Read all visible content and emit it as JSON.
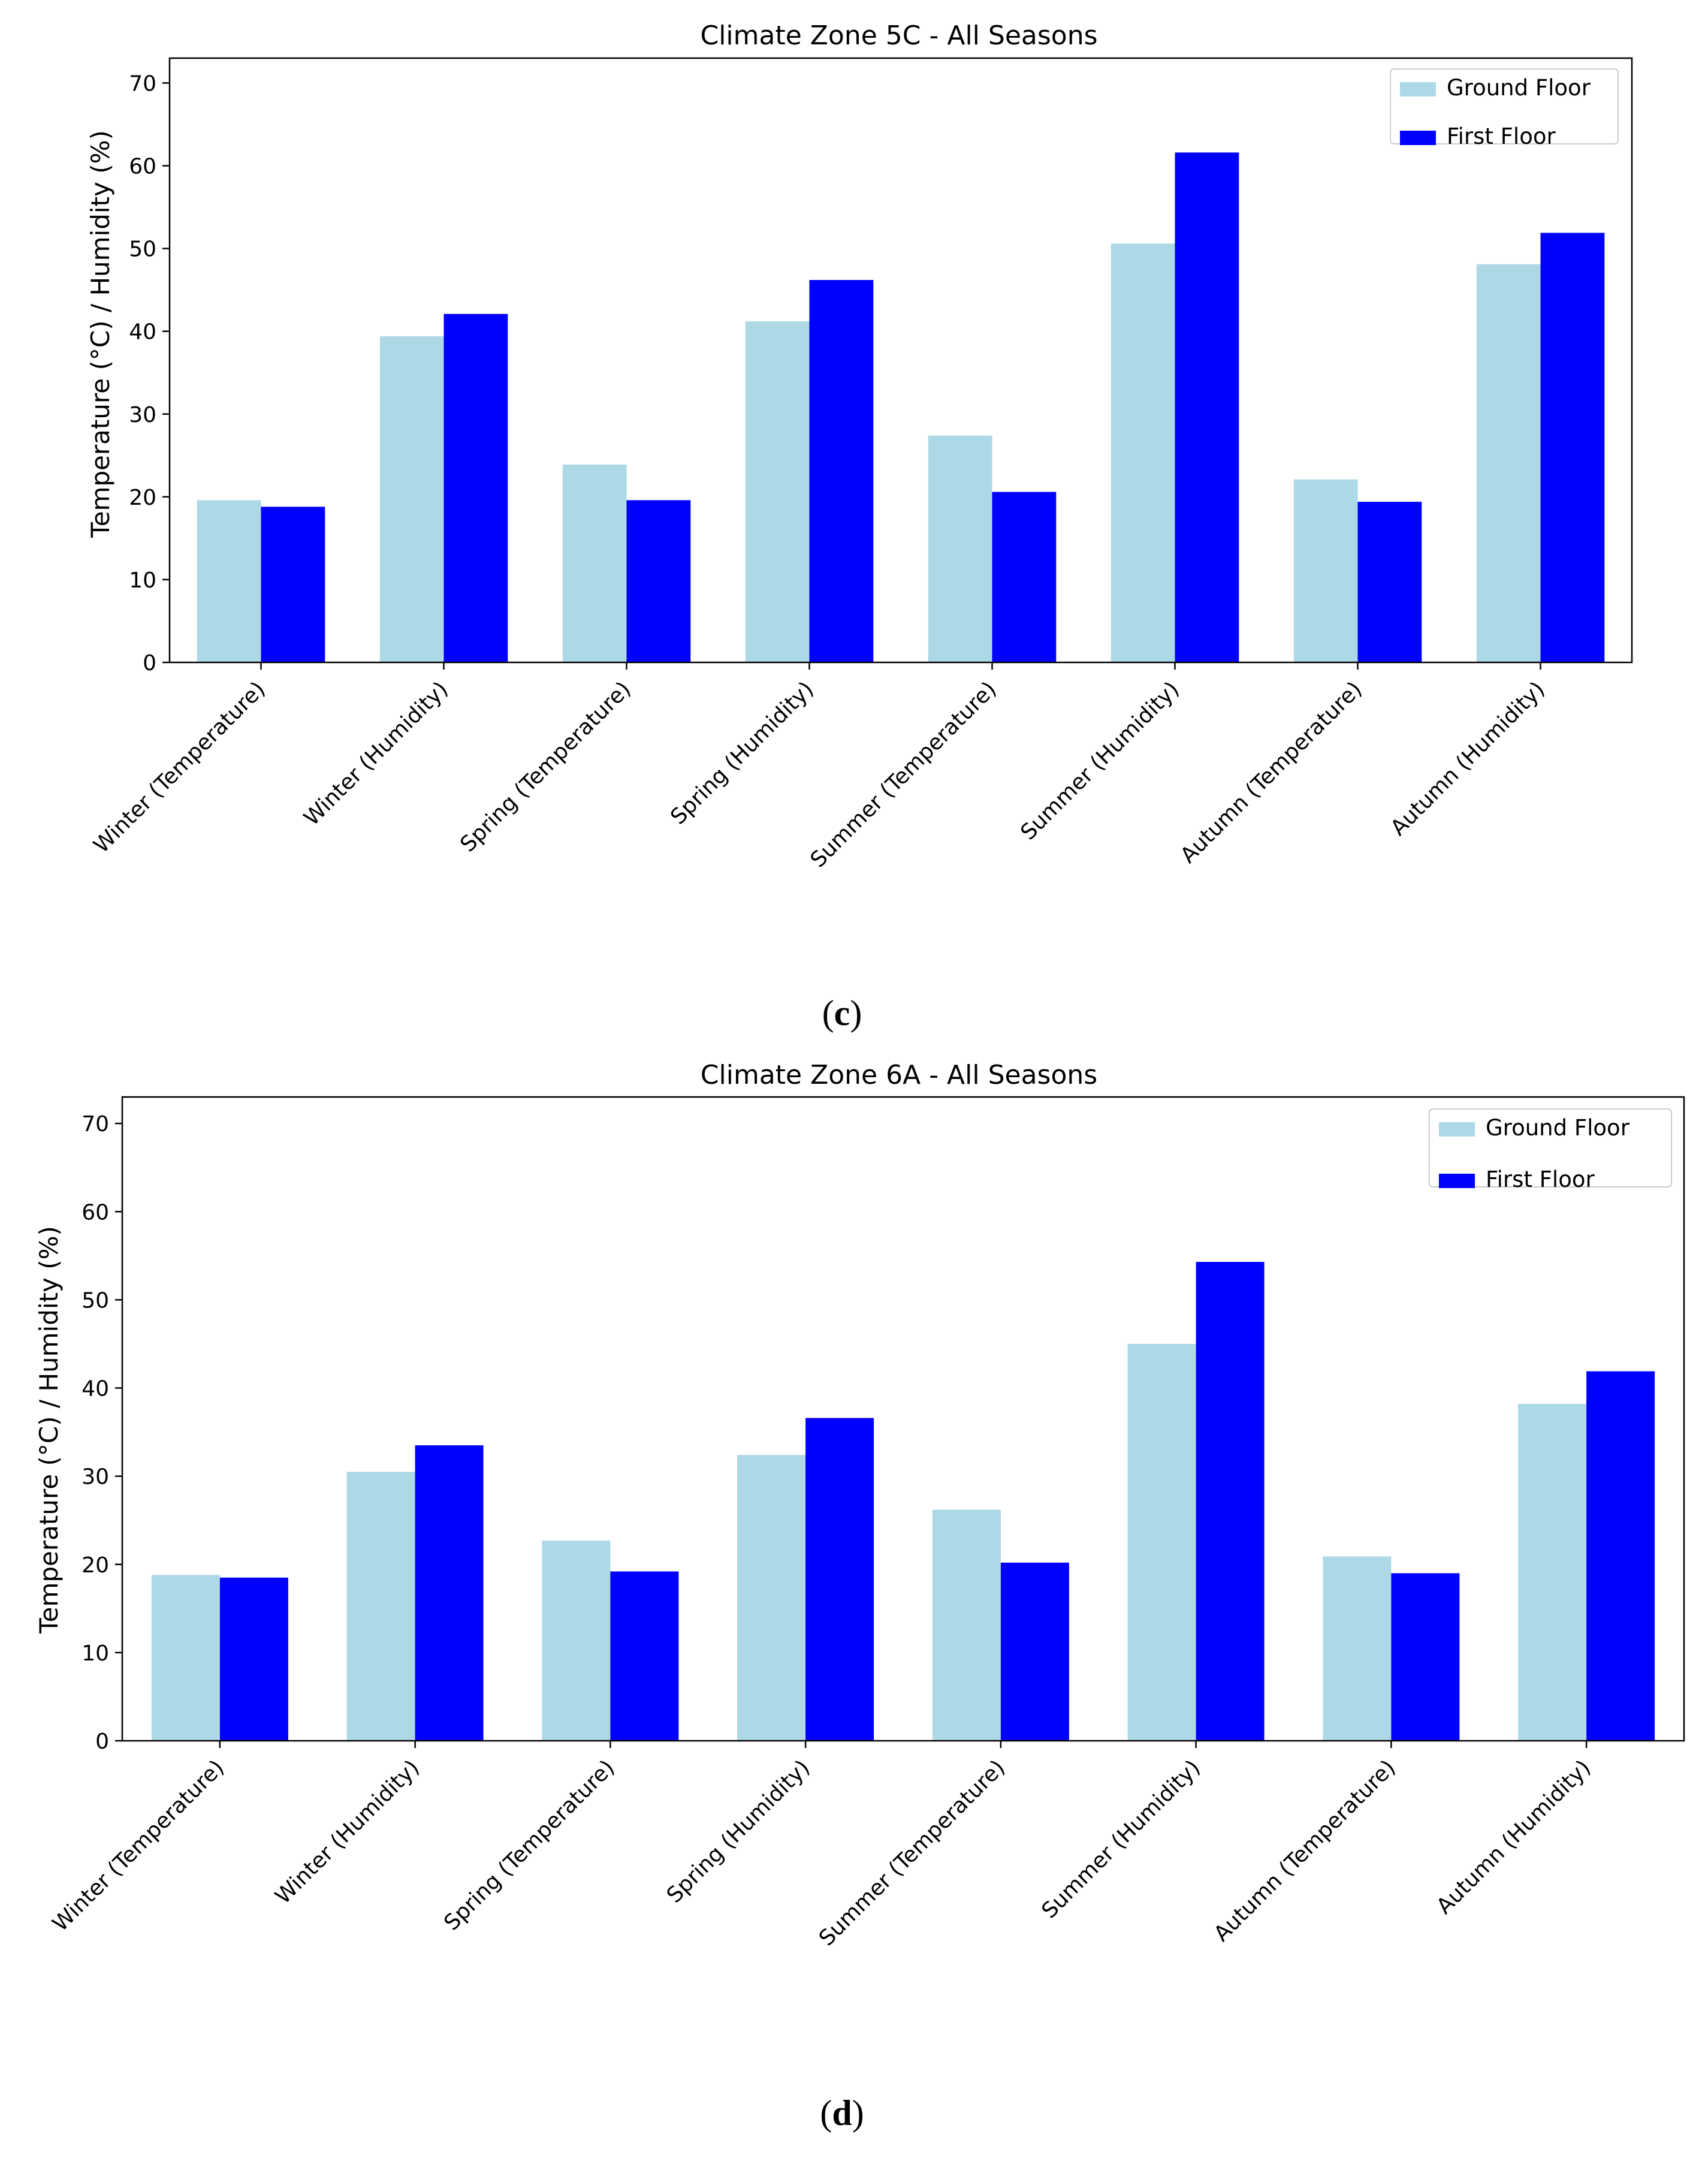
{
  "colors": {
    "ground": "#add8e6",
    "first": "#0000ff"
  },
  "charts": [
    {
      "title": "Climate Zone 5C - All Seasons",
      "caption_letter": "c",
      "ylabel": "Temperature (°C) / Humidity (%)",
      "legend": [
        "Ground Floor",
        "First Floor"
      ]
    },
    {
      "title": "Climate Zone 6A - All Seasons",
      "caption_letter": "d",
      "ylabel": "Temperature (°C) / Humidity (%)",
      "legend": [
        "Ground Floor",
        "First Floor"
      ]
    }
  ],
  "chart_data": [
    {
      "type": "bar",
      "title": "Climate Zone 5C - All Seasons",
      "xlabel": "",
      "ylabel": "Temperature (°C) / Humidity (%)",
      "ylim": [
        0,
        73
      ],
      "yticks": [
        0,
        10,
        20,
        30,
        40,
        50,
        60,
        70
      ],
      "legend_position": "top-right",
      "grid": false,
      "categories": [
        "Winter (Temperature)",
        "Winter (Humidity)",
        "Spring (Temperature)",
        "Spring (Humidity)",
        "Summer (Temperature)",
        "Summer (Humidity)",
        "Autumn (Temperature)",
        "Autumn (Humidity)"
      ],
      "series": [
        {
          "name": "Ground Floor",
          "values": [
            19.6,
            39.4,
            23.9,
            41.2,
            27.4,
            50.6,
            22.1,
            48.1
          ]
        },
        {
          "name": "First Floor",
          "values": [
            18.8,
            42.1,
            19.6,
            46.2,
            20.6,
            61.6,
            19.4,
            51.9
          ]
        }
      ]
    },
    {
      "type": "bar",
      "title": "Climate Zone 6A - All Seasons",
      "xlabel": "",
      "ylabel": "Temperature (°C) / Humidity (%)",
      "ylim": [
        0,
        73
      ],
      "yticks": [
        0,
        10,
        20,
        30,
        40,
        50,
        60,
        70
      ],
      "legend_position": "top-right",
      "grid": false,
      "categories": [
        "Winter (Temperature)",
        "Winter (Humidity)",
        "Spring (Temperature)",
        "Spring (Humidity)",
        "Summer (Temperature)",
        "Summer (Humidity)",
        "Autumn (Temperature)",
        "Autumn (Humidity)"
      ],
      "series": [
        {
          "name": "Ground Floor",
          "values": [
            18.8,
            30.5,
            22.7,
            32.4,
            26.2,
            45.0,
            20.9,
            38.2
          ]
        },
        {
          "name": "First Floor",
          "values": [
            18.5,
            33.5,
            19.2,
            36.6,
            20.2,
            54.3,
            19.0,
            41.9
          ]
        }
      ]
    }
  ]
}
